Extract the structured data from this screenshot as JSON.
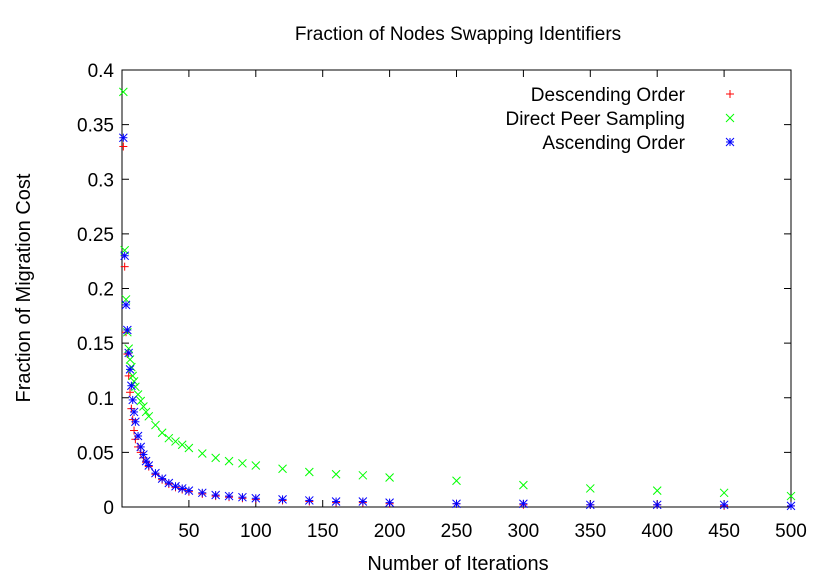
{
  "chart_data": {
    "type": "scatter",
    "title": "Fraction of Nodes Swapping Identifiers",
    "xlabel": "Number of Iterations",
    "ylabel": "Fraction of Migration Cost",
    "xlim": [
      0,
      500
    ],
    "ylim": [
      0,
      0.4
    ],
    "x_ticks": [
      50,
      100,
      150,
      200,
      250,
      300,
      350,
      400,
      450,
      500
    ],
    "y_ticks": [
      0,
      0.05,
      0.1,
      0.15,
      0.2,
      0.25,
      0.3,
      0.35,
      0.4
    ],
    "x_tick_labels": [
      "50",
      "100",
      "150",
      "200",
      "250",
      "300",
      "350",
      "400",
      "450",
      "500"
    ],
    "y_tick_labels": [
      "0",
      "0.05",
      "0.1",
      "0.15",
      "0.2",
      "0.25",
      "0.3",
      "0.35",
      "0.4"
    ],
    "grid": false,
    "legend_position": "top-right",
    "series": [
      {
        "name": "Descending Order",
        "marker": "plus",
        "color": "#ff0000",
        "x": [
          1,
          2,
          3,
          4,
          5,
          6,
          7,
          8,
          9,
          10,
          12,
          14,
          16,
          18,
          20,
          25,
          30,
          35,
          40,
          45,
          50,
          60,
          70,
          80,
          90,
          100,
          120,
          140,
          160,
          180,
          200,
          250,
          300,
          350,
          400,
          450,
          500
        ],
        "y": [
          0.33,
          0.22,
          0.16,
          0.14,
          0.12,
          0.105,
          0.09,
          0.08,
          0.07,
          0.062,
          0.055,
          0.05,
          0.045,
          0.041,
          0.037,
          0.03,
          0.025,
          0.021,
          0.018,
          0.016,
          0.014,
          0.012,
          0.01,
          0.009,
          0.008,
          0.007,
          0.006,
          0.005,
          0.004,
          0.004,
          0.003,
          0.003,
          0.002,
          0.002,
          0.002,
          0.001,
          0.001
        ]
      },
      {
        "name": "Direct Peer Sampling",
        "marker": "cross",
        "color": "#00ff00",
        "x": [
          1,
          2,
          3,
          4,
          5,
          6,
          7,
          8,
          9,
          10,
          12,
          14,
          16,
          18,
          20,
          25,
          30,
          35,
          40,
          45,
          50,
          60,
          70,
          80,
          90,
          100,
          120,
          140,
          160,
          180,
          200,
          250,
          300,
          350,
          400,
          450,
          500
        ],
        "y": [
          0.38,
          0.235,
          0.19,
          0.16,
          0.145,
          0.135,
          0.128,
          0.12,
          0.115,
          0.11,
          0.103,
          0.097,
          0.092,
          0.087,
          0.083,
          0.075,
          0.068,
          0.063,
          0.06,
          0.057,
          0.054,
          0.049,
          0.045,
          0.042,
          0.04,
          0.038,
          0.035,
          0.032,
          0.03,
          0.029,
          0.027,
          0.024,
          0.02,
          0.017,
          0.015,
          0.013,
          0.01
        ]
      },
      {
        "name": "Ascending Order",
        "marker": "star",
        "color": "#0000ff",
        "x": [
          1,
          2,
          3,
          4,
          5,
          6,
          7,
          8,
          9,
          10,
          12,
          14,
          16,
          18,
          20,
          25,
          30,
          35,
          40,
          45,
          50,
          60,
          70,
          80,
          90,
          100,
          120,
          140,
          160,
          180,
          200,
          250,
          300,
          350,
          400,
          450,
          500
        ],
        "y": [
          0.338,
          0.23,
          0.185,
          0.162,
          0.141,
          0.126,
          0.111,
          0.098,
          0.087,
          0.078,
          0.065,
          0.055,
          0.048,
          0.042,
          0.038,
          0.031,
          0.026,
          0.022,
          0.019,
          0.017,
          0.015,
          0.013,
          0.011,
          0.01,
          0.009,
          0.008,
          0.007,
          0.006,
          0.005,
          0.005,
          0.004,
          0.003,
          0.003,
          0.002,
          0.002,
          0.002,
          0.001
        ]
      }
    ]
  }
}
